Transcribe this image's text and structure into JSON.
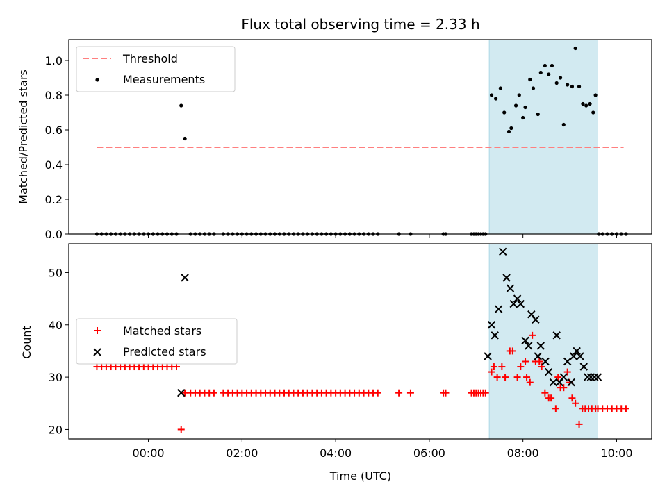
{
  "chart_data": {
    "type": "scatter",
    "title": "Flux total observing time = 2.33 h",
    "xlabel": "Time (UTC)",
    "x_ticks": [
      "00:00",
      "02:00",
      "04:00",
      "06:00",
      "08:00",
      "10:00"
    ],
    "x_tick_hours": [
      0,
      2,
      4,
      6,
      8,
      10
    ],
    "xlim_hours": [
      -1.7,
      10.75
    ],
    "shaded_interval_hours": [
      7.28,
      9.6
    ],
    "colors": {
      "threshold": "#ff7f7f",
      "measurements": "#000000",
      "matched": "#ff0000",
      "predicted": "#000000",
      "shade": "#add8e6"
    },
    "panels": [
      {
        "id": "ratio",
        "ylabel": "Matched/Predicted stars",
        "ylim": [
          0,
          1.12
        ],
        "y_ticks": [
          "0.0",
          "0.2",
          "0.4",
          "0.6",
          "0.8",
          "1.0"
        ],
        "y_tick_values": [
          0,
          0.2,
          0.4,
          0.6,
          0.8,
          1.0
        ],
        "legend": {
          "placement": "upper-left",
          "entries": [
            "Threshold",
            "Measurements"
          ]
        },
        "threshold": {
          "value": 0.5,
          "x_range_hours": [
            -1.1,
            10.15
          ]
        },
        "measurements": {
          "x_hours": [
            -1.1,
            -1.0,
            -0.9,
            -0.8,
            -0.7,
            -0.6,
            -0.5,
            -0.4,
            -0.3,
            -0.2,
            -0.1,
            0,
            0.1,
            0.2,
            0.3,
            0.4,
            0.5,
            0.6,
            0.7,
            0.78,
            0.9,
            1.0,
            1.1,
            1.2,
            1.3,
            1.4,
            1.6,
            1.7,
            1.8,
            1.9,
            2.0,
            2.1,
            2.2,
            2.3,
            2.4,
            2.5,
            2.6,
            2.7,
            2.8,
            2.9,
            3.0,
            3.1,
            3.2,
            3.3,
            3.4,
            3.5,
            3.6,
            3.7,
            3.8,
            3.9,
            4.0,
            4.1,
            4.2,
            4.3,
            4.4,
            4.5,
            4.6,
            4.7,
            4.8,
            4.9,
            5.35,
            5.6,
            6.3,
            6.35,
            6.9,
            6.95,
            7.0,
            7.05,
            7.1,
            7.15,
            7.2,
            7.33,
            7.42,
            7.52,
            7.6,
            7.7,
            7.75,
            7.85,
            7.92,
            8.0,
            8.05,
            8.15,
            8.22,
            8.32,
            8.38,
            8.47,
            8.55,
            8.62,
            8.72,
            8.8,
            8.87,
            8.95,
            9.05,
            9.12,
            9.2,
            9.28,
            9.35,
            9.43,
            9.5,
            9.55,
            9.62,
            9.7,
            9.8,
            9.9,
            10.0,
            10.1,
            10.2
          ],
          "y": [
            0,
            0,
            0,
            0,
            0,
            0,
            0,
            0,
            0,
            0,
            0,
            0,
            0,
            0,
            0,
            0,
            0,
            0,
            0.74,
            0.55,
            0,
            0,
            0,
            0,
            0,
            0,
            0,
            0,
            0,
            0,
            0,
            0,
            0,
            0,
            0,
            0,
            0,
            0,
            0,
            0,
            0,
            0,
            0,
            0,
            0,
            0,
            0,
            0,
            0,
            0,
            0,
            0,
            0,
            0,
            0,
            0,
            0,
            0,
            0,
            0,
            0,
            0,
            0,
            0,
            0,
            0,
            0,
            0,
            0,
            0,
            0,
            0.8,
            0.78,
            0.84,
            0.7,
            0.59,
            0.61,
            0.74,
            0.8,
            0.67,
            0.73,
            0.89,
            0.84,
            0.69,
            0.93,
            0.97,
            0.92,
            0.97,
            0.87,
            0.9,
            0.63,
            0.86,
            0.85,
            1.07,
            0.85,
            0.75,
            0.74,
            0.75,
            0.7,
            0.8,
            0,
            0,
            0,
            0,
            0,
            0,
            0
          ]
        }
      },
      {
        "id": "counts",
        "ylabel": "Count",
        "ylim": [
          18.2,
          55.5
        ],
        "y_ticks": [
          "20",
          "30",
          "40",
          "50"
        ],
        "y_tick_values": [
          20,
          30,
          40,
          50
        ],
        "legend": {
          "placement": "center-left",
          "entries": [
            "Matched stars",
            "Predicted stars"
          ]
        },
        "matched": {
          "x_hours": [
            -1.1,
            -1.0,
            -0.9,
            -0.8,
            -0.7,
            -0.6,
            -0.5,
            -0.4,
            -0.3,
            -0.2,
            -0.1,
            0,
            0.1,
            0.2,
            0.3,
            0.4,
            0.5,
            0.6,
            0.7,
            0.78,
            0.9,
            1.0,
            1.1,
            1.2,
            1.3,
            1.4,
            1.6,
            1.7,
            1.8,
            1.9,
            2.0,
            2.1,
            2.2,
            2.3,
            2.4,
            2.5,
            2.6,
            2.7,
            2.8,
            2.9,
            3.0,
            3.1,
            3.2,
            3.3,
            3.4,
            3.5,
            3.6,
            3.7,
            3.8,
            3.9,
            4.0,
            4.1,
            4.2,
            4.3,
            4.4,
            4.5,
            4.6,
            4.7,
            4.8,
            4.9,
            5.35,
            5.6,
            6.3,
            6.35,
            6.9,
            6.95,
            7.0,
            7.05,
            7.1,
            7.15,
            7.2,
            7.33,
            7.38,
            7.45,
            7.55,
            7.62,
            7.72,
            7.78,
            7.88,
            7.95,
            8.05,
            8.08,
            8.15,
            8.2,
            8.27,
            8.35,
            8.4,
            8.47,
            8.55,
            8.6,
            8.7,
            8.75,
            8.8,
            8.87,
            8.95,
            9.0,
            9.05,
            9.12,
            9.2,
            9.27,
            9.33,
            9.4,
            9.47,
            9.55,
            9.6,
            9.7,
            9.8,
            9.9,
            10.0,
            10.1,
            10.2
          ],
          "y": [
            32,
            32,
            32,
            32,
            32,
            32,
            32,
            32,
            32,
            32,
            32,
            32,
            32,
            32,
            32,
            32,
            32,
            32,
            20,
            27,
            27,
            27,
            27,
            27,
            27,
            27,
            27,
            27,
            27,
            27,
            27,
            27,
            27,
            27,
            27,
            27,
            27,
            27,
            27,
            27,
            27,
            27,
            27,
            27,
            27,
            27,
            27,
            27,
            27,
            27,
            27,
            27,
            27,
            27,
            27,
            27,
            27,
            27,
            27,
            27,
            27,
            27,
            27,
            27,
            27,
            27,
            27,
            27,
            27,
            27,
            27,
            31,
            32,
            30,
            32,
            30,
            35,
            35,
            30,
            32,
            33,
            30,
            29,
            38,
            33,
            33,
            32,
            27,
            26,
            26,
            24,
            30,
            28,
            28,
            31,
            29,
            26,
            25,
            21,
            24,
            24,
            24,
            24,
            24,
            24,
            24,
            24,
            24,
            24,
            24,
            24
          ]
        },
        "predicted": {
          "x_hours": [
            0.7,
            0.78,
            7.25,
            7.33,
            7.4,
            7.48,
            7.57,
            7.65,
            7.73,
            7.8,
            7.88,
            7.95,
            8.05,
            8.12,
            8.18,
            8.27,
            8.32,
            8.38,
            8.48,
            8.55,
            8.65,
            8.72,
            8.78,
            8.87,
            8.95,
            9.03,
            9.08,
            9.15,
            9.22,
            9.3,
            9.38,
            9.45,
            9.53,
            9.6
          ],
          "y": [
            27,
            49,
            34,
            40,
            38,
            43,
            54,
            49,
            47,
            44,
            45,
            44,
            37,
            36,
            42,
            41,
            34,
            36,
            33,
            31,
            29,
            38,
            29,
            30,
            33,
            29,
            34,
            35,
            34,
            32,
            30,
            30,
            30,
            30
          ]
        }
      }
    ],
    "series_names": {
      "threshold": "Threshold",
      "measurements": "Measurements",
      "matched": "Matched stars",
      "predicted": "Predicted stars"
    }
  }
}
